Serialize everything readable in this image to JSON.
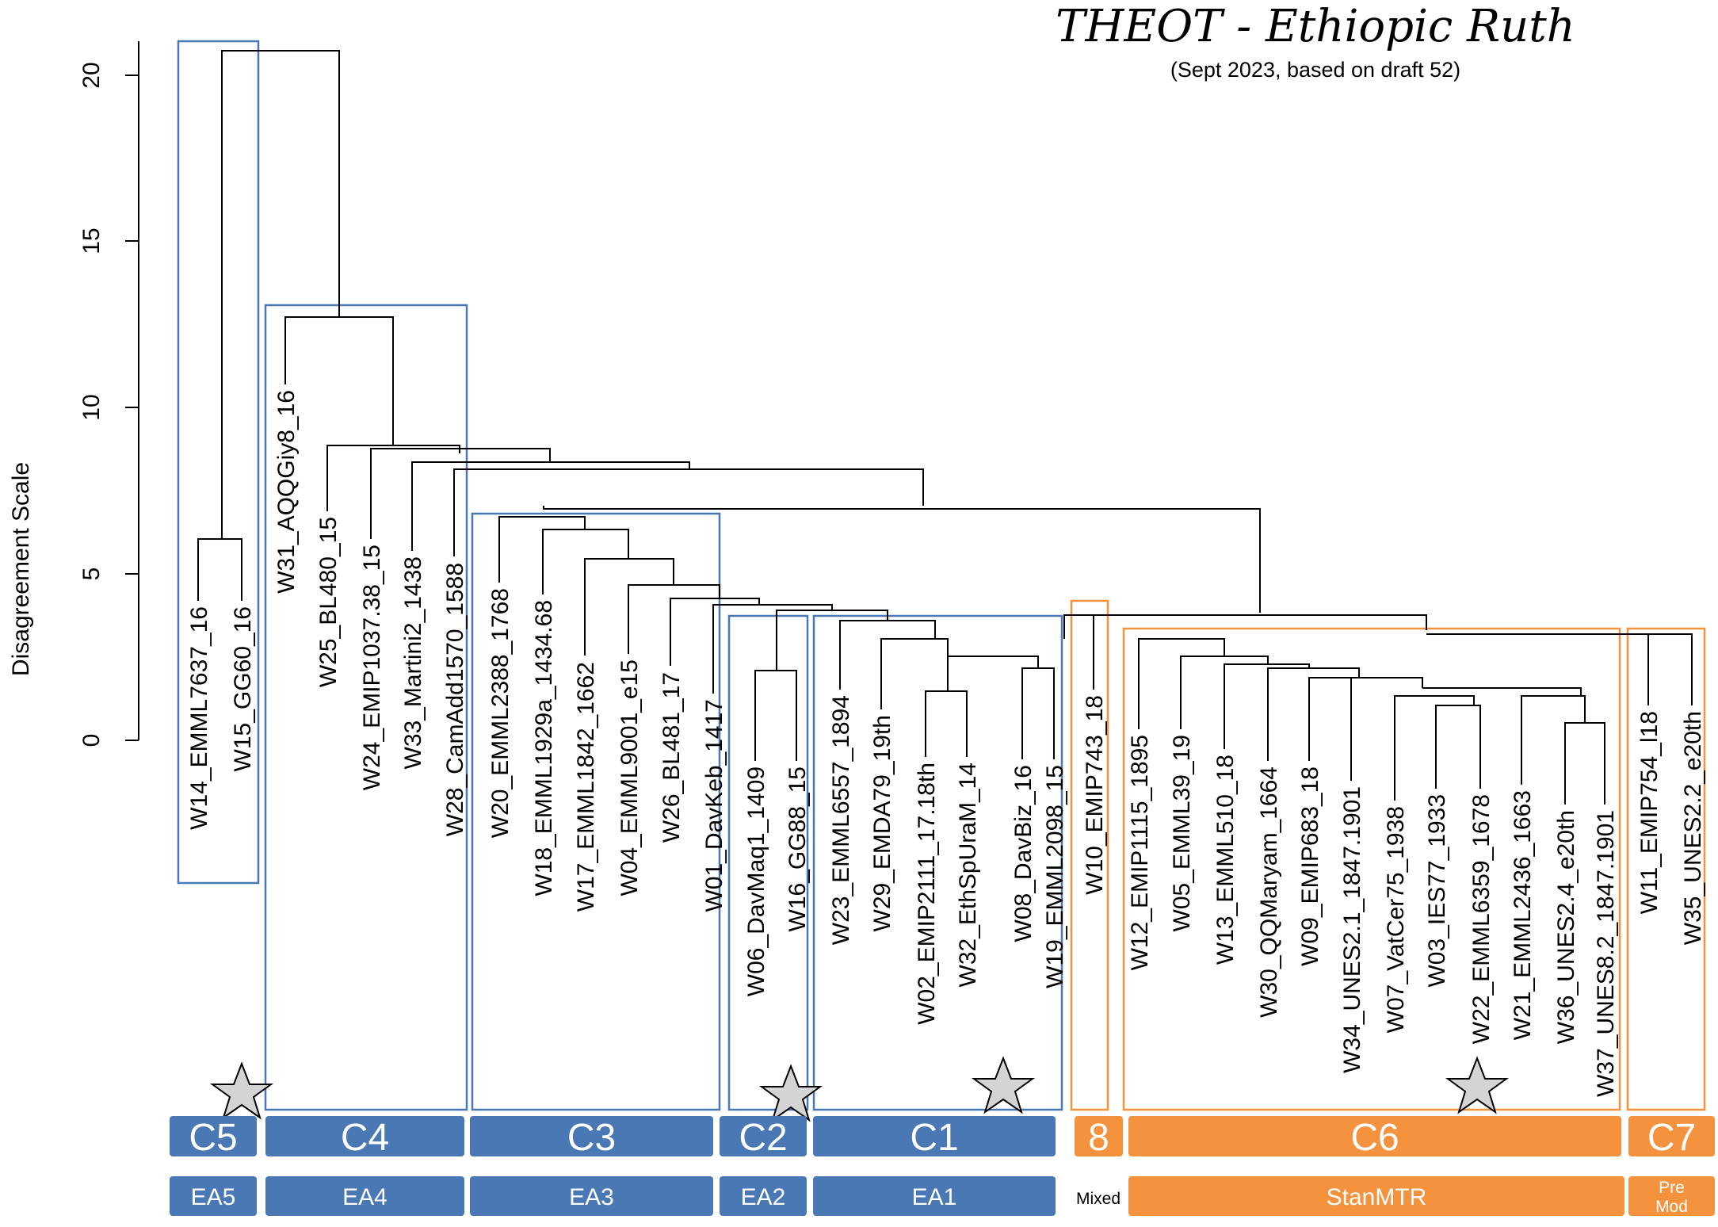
{
  "title": "THEOT - Ethiopic Ruth",
  "subtitle": "(Sept 2023, based on draft 52)",
  "y_axis": {
    "label": "Disagreement Scale",
    "ticks": [
      "0",
      "5",
      "10",
      "15",
      "20"
    ]
  },
  "colors": {
    "blue": "#4a78b5",
    "orange": "#f4923e",
    "line": "#000000",
    "star_fill": "#d4d4d4"
  },
  "leaves": [
    "W14_EMML7637_16",
    "W15_GG60_16",
    "W31_AQQGiy8_16",
    "W25_BL480_15",
    "W24_EMIP1037.38_15",
    "W33_Martini2_1438",
    "W28_CamAdd1570_1588",
    "W20_EMML2388_1768",
    "W18_EMML1929a_1434.68",
    "W17_EMML1842_1662",
    "W04_EMML9001_e15",
    "W26_BL481_17",
    "W01_DavKeb_1417",
    "W06_DavMaq1_1409",
    "W16_GG88_15",
    "W23_EMML6557_1894",
    "W29_EMDA79_19th",
    "W02_EMIP2111_17.18th",
    "W32_EthSpUraM_14",
    "W08_DavBiz_16",
    "W19_EMML2098_15",
    "W10_EMIP743_18",
    "W12_EMIP1115_1895",
    "W05_EMML39_19",
    "W13_EMML510_18",
    "W30_QQMaryam_1664",
    "W09_EMIP683_18",
    "W34_UNES2.1_1847.1901",
    "W07_VatCer75_1938",
    "W03_IES77_1933",
    "W22_EMML6359_1678",
    "W21_EMML2436_1663",
    "W36_UNES2.4_e20th",
    "W37_UNES8.2_1847.1901",
    "W11_EMIP754_l18",
    "W35_UNES2.2_e20th"
  ],
  "clusters": [
    {
      "label": "C5",
      "color": "blue"
    },
    {
      "label": "C4",
      "color": "blue"
    },
    {
      "label": "C3",
      "color": "blue"
    },
    {
      "label": "C2",
      "color": "blue"
    },
    {
      "label": "C1",
      "color": "blue"
    },
    {
      "label": "8",
      "color": "orange"
    },
    {
      "label": "C6",
      "color": "orange"
    },
    {
      "label": "C7",
      "color": "orange"
    }
  ],
  "groups": [
    {
      "label": "EA5"
    },
    {
      "label": "EA4"
    },
    {
      "label": "EA3"
    },
    {
      "label": "EA2"
    },
    {
      "label": "EA1"
    },
    {
      "label": "Mixed"
    },
    {
      "label": "StanMTR"
    },
    {
      "label": "Pre\nMod"
    }
  ],
  "dendrogram": {
    "merge_heights": {
      "W14_W15": 6.1,
      "C5_rest": 20.8,
      "C4_rest": 12.7,
      "W31_rest": 12.7,
      "W25_rest": 8.8,
      "W24_rest": 8.7,
      "W33_rest": 8.3,
      "W28_rest": 8.1,
      "C3_C1C6": 7.1,
      "C3_internal_top": 6.7,
      "C6_C7_C8": 3.8,
      "C1_top": 3.7,
      "C7_top": 3.2
    }
  }
}
